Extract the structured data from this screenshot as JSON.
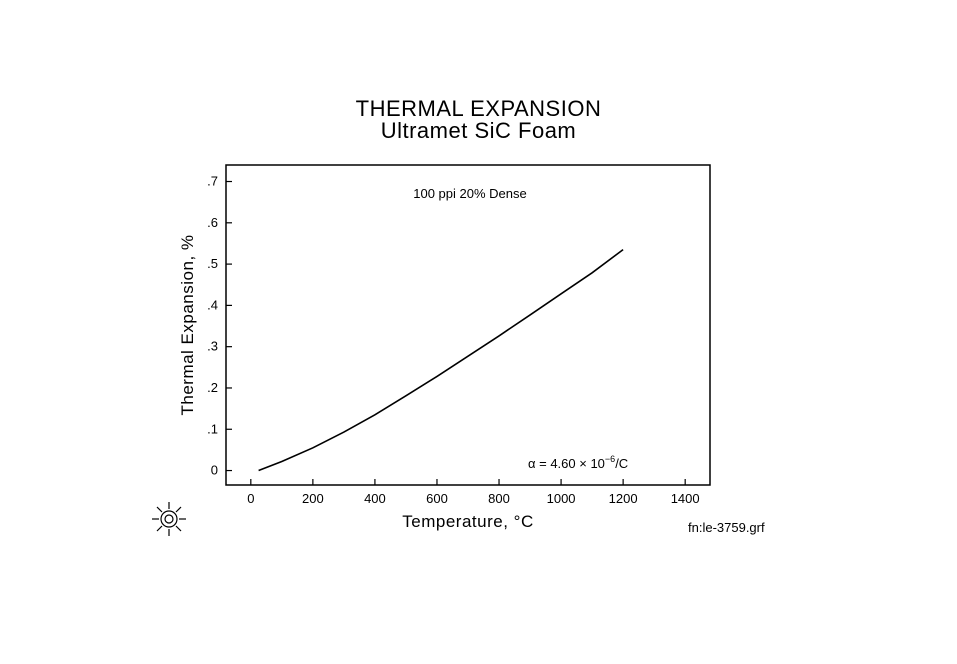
{
  "chart_data": {
    "type": "line",
    "title": "THERMAL EXPANSION",
    "subtitle": "Ultramet SiC Foam",
    "xlabel": "Temperature, °C",
    "ylabel": "Thermal Expansion, %",
    "xlim": [
      -80,
      1480
    ],
    "ylim": [
      -0.035,
      0.74
    ],
    "x_ticks": [
      0,
      200,
      400,
      600,
      800,
      1000,
      1200,
      1400
    ],
    "x_tick_labels": [
      "0",
      "200",
      "400",
      "600",
      "800",
      "1000",
      "1200",
      "1400"
    ],
    "y_ticks": [
      0,
      0.1,
      0.2,
      0.3,
      0.4,
      0.5,
      0.6,
      0.7
    ],
    "y_tick_labels": [
      "0",
      ".1",
      ".2",
      ".3",
      ".4",
      ".5",
      ".6",
      ".7"
    ],
    "grid": false,
    "annotations": {
      "sample": "100 ppi 20% Dense",
      "alpha_prefix": "α = 4.60 × 10",
      "alpha_exp": "−6",
      "alpha_suffix": "/C"
    },
    "series": [
      {
        "x": [
          25,
          100,
          200,
          300,
          400,
          500,
          600,
          700,
          800,
          900,
          1000,
          1100,
          1200
        ],
        "y": [
          0.0,
          0.022,
          0.055,
          0.093,
          0.135,
          0.181,
          0.228,
          0.277,
          0.326,
          0.377,
          0.428,
          0.479,
          0.535
        ]
      }
    ]
  },
  "footer": {
    "filename": "fn:le-3759.grf"
  }
}
